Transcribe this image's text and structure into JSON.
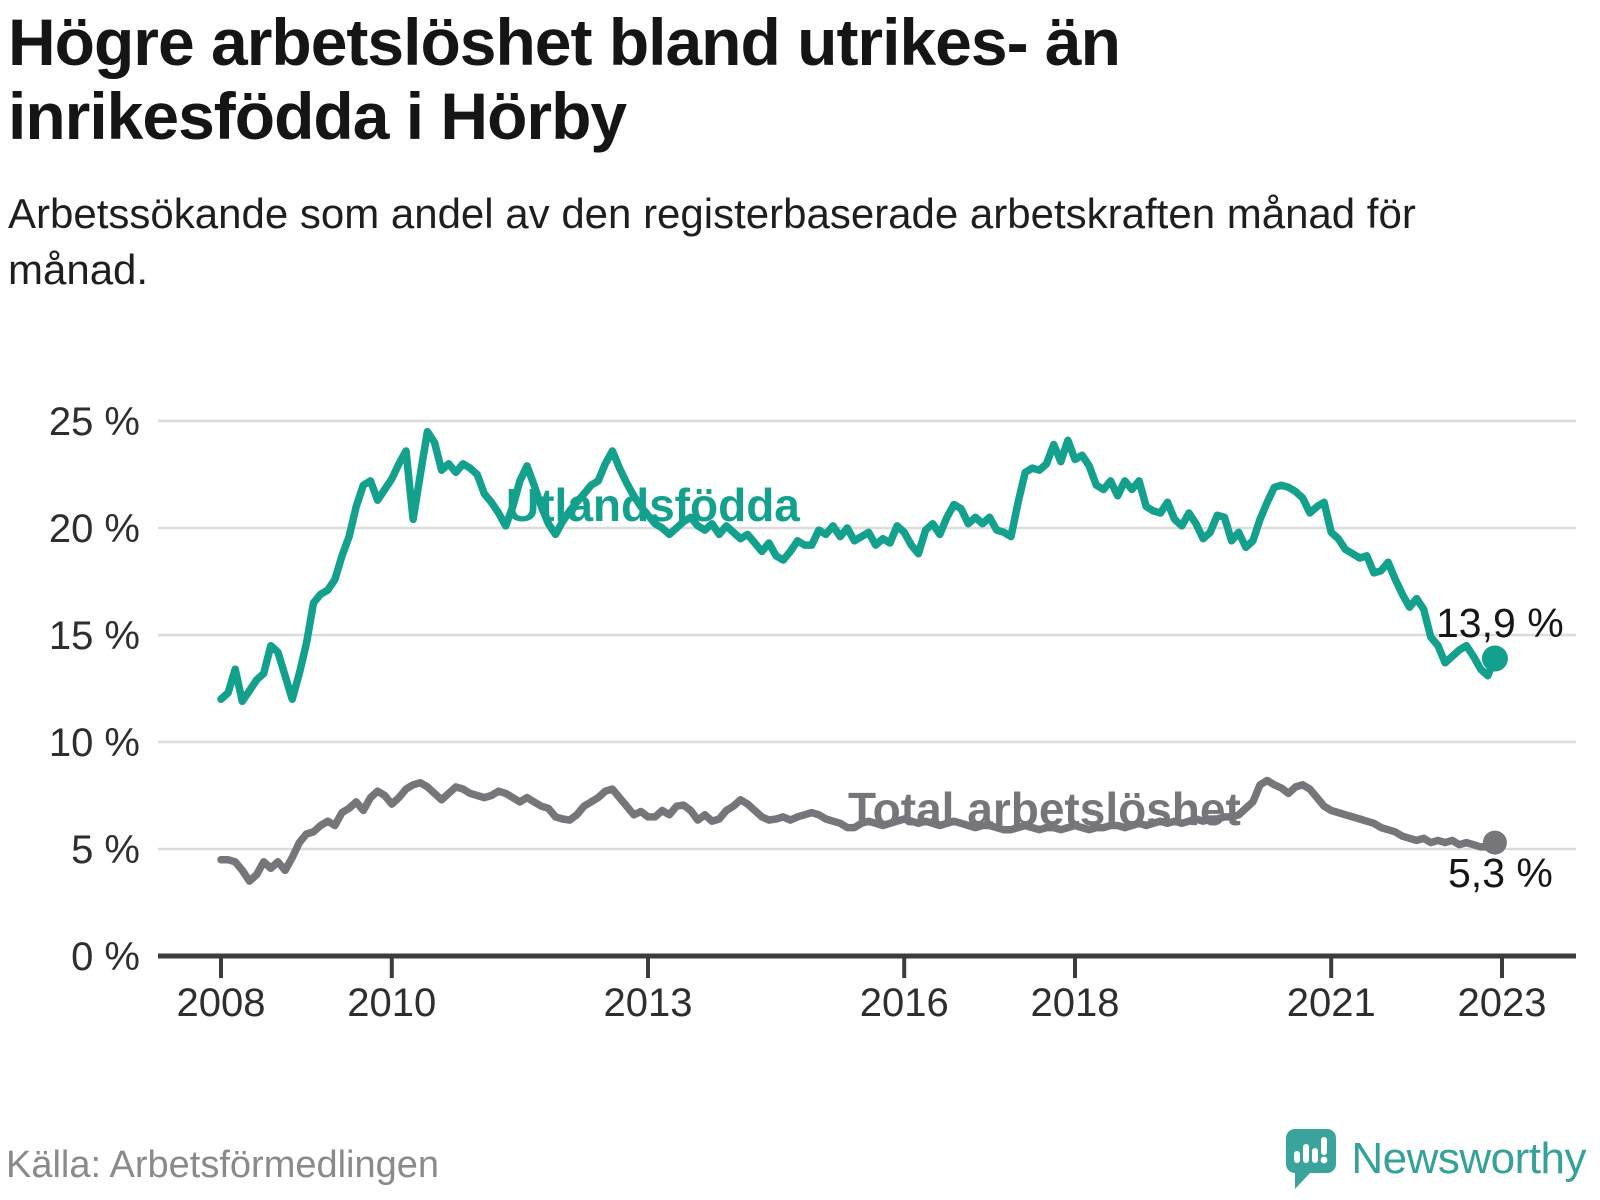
{
  "header": {
    "title": "Högre arbetslöshet bland utrikes- än inrikesfödda i Hörby",
    "subtitle": "Arbetssökande som andel av den registerbaserade arbetskraften månad för månad."
  },
  "footer": {
    "source": "Källa: Arbetsförmedlingen",
    "brand_name": "Newsworthy"
  },
  "colors": {
    "foreign_born_line": "#13a08d",
    "total_line": "#75757a",
    "gridline": "#dcdcdc",
    "axis": "#3c3c3c",
    "tick_text": "#2e2e2e",
    "brand_teal": "#3aa39b"
  },
  "chart_data": {
    "type": "line",
    "x_unit": "month",
    "x_start": "2008-01",
    "x_end": "2022-12",
    "grid": "horizontal-only",
    "ylim": [
      0,
      26
    ],
    "y_ticks": [
      {
        "label": "25 %",
        "value": 25
      },
      {
        "label": "20 %",
        "value": 20
      },
      {
        "label": "15 %",
        "value": 15
      },
      {
        "label": "10 %",
        "value": 10
      },
      {
        "label": "5 %",
        "value": 5
      },
      {
        "label": "0 %",
        "value": 0
      }
    ],
    "x_ticks": [
      {
        "label": "2008",
        "year": 2008
      },
      {
        "label": "2010",
        "year": 2010
      },
      {
        "label": "2013",
        "year": 2013
      },
      {
        "label": "2016",
        "year": 2016
      },
      {
        "label": "2018",
        "year": 2018
      },
      {
        "label": "2021",
        "year": 2021
      },
      {
        "label": "2023",
        "year": 2023
      }
    ],
    "series": [
      {
        "name": "Utlandsfödda",
        "color": "#13a08d",
        "end_label": "13,9 %",
        "end_value": 13.9,
        "values": [
          12.0,
          12.3,
          13.4,
          11.9,
          12.4,
          12.9,
          13.2,
          14.5,
          14.2,
          13.1,
          12.0,
          13.2,
          14.6,
          16.5,
          16.9,
          17.1,
          17.6,
          18.7,
          19.6,
          21.0,
          22.0,
          22.2,
          21.3,
          21.8,
          22.3,
          23.0,
          23.6,
          20.4,
          22.5,
          24.5,
          24.0,
          22.7,
          23.0,
          22.6,
          23.0,
          22.8,
          22.5,
          21.6,
          21.2,
          20.7,
          20.1,
          21.0,
          22.2,
          22.9,
          22.0,
          21.0,
          20.2,
          19.7,
          20.3,
          20.8,
          21.2,
          21.6,
          22.0,
          22.2,
          23.0,
          23.6,
          22.8,
          22.1,
          21.5,
          21.0,
          20.6,
          20.2,
          20.0,
          19.7,
          20.0,
          20.3,
          20.5,
          20.1,
          19.9,
          20.2,
          19.7,
          20.1,
          19.8,
          19.5,
          19.7,
          19.3,
          18.9,
          19.3,
          18.7,
          18.5,
          18.9,
          19.4,
          19.2,
          19.2,
          19.9,
          19.7,
          20.1,
          19.6,
          20.0,
          19.4,
          19.6,
          19.8,
          19.2,
          19.5,
          19.3,
          20.1,
          19.8,
          19.2,
          18.8,
          19.9,
          20.2,
          19.7,
          20.5,
          21.1,
          20.9,
          20.2,
          20.5,
          20.2,
          20.5,
          19.9,
          19.8,
          19.6,
          21.2,
          22.6,
          22.8,
          22.7,
          23.0,
          23.9,
          23.1,
          24.1,
          23.2,
          23.4,
          22.9,
          22.0,
          21.8,
          22.2,
          21.5,
          22.2,
          21.8,
          22.2,
          21.0,
          20.8,
          20.7,
          21.2,
          20.4,
          20.1,
          20.7,
          20.2,
          19.5,
          19.8,
          20.6,
          20.5,
          19.4,
          19.8,
          19.1,
          19.4,
          20.4,
          21.2,
          21.9,
          22.0,
          21.9,
          21.7,
          21.4,
          20.7,
          21.0,
          21.2,
          19.8,
          19.5,
          19.0,
          18.8,
          18.6,
          18.7,
          17.9,
          18.0,
          18.4,
          17.6,
          16.9,
          16.3,
          16.7,
          16.2,
          14.9,
          14.5,
          13.7,
          14.0,
          14.3,
          14.5,
          14.0,
          13.4,
          13.1,
          13.9
        ]
      },
      {
        "name": "Total arbetslöshet",
        "color": "#75757a",
        "end_label": "5,3 %",
        "end_value": 5.3,
        "values": [
          4.5,
          4.5,
          4.4,
          4.0,
          3.5,
          3.8,
          4.4,
          4.1,
          4.4,
          4.0,
          4.6,
          5.3,
          5.7,
          5.8,
          6.1,
          6.3,
          6.1,
          6.7,
          6.9,
          7.2,
          6.8,
          7.4,
          7.7,
          7.5,
          7.1,
          7.4,
          7.8,
          8.0,
          8.1,
          7.9,
          7.6,
          7.3,
          7.6,
          7.9,
          7.8,
          7.6,
          7.5,
          7.4,
          7.5,
          7.7,
          7.6,
          7.4,
          7.2,
          7.4,
          7.2,
          7.0,
          6.9,
          6.5,
          6.4,
          6.35,
          6.6,
          7.0,
          7.2,
          7.4,
          7.7,
          7.8,
          7.4,
          7.0,
          6.6,
          6.75,
          6.5,
          6.5,
          6.8,
          6.6,
          7.0,
          7.05,
          6.8,
          6.35,
          6.6,
          6.3,
          6.4,
          6.8,
          7.0,
          7.3,
          7.1,
          6.8,
          6.5,
          6.35,
          6.4,
          6.5,
          6.35,
          6.5,
          6.6,
          6.7,
          6.6,
          6.4,
          6.3,
          6.2,
          6.0,
          6.0,
          6.2,
          6.3,
          6.2,
          6.1,
          6.2,
          6.3,
          6.4,
          6.3,
          6.2,
          6.3,
          6.2,
          6.1,
          6.2,
          6.3,
          6.2,
          6.1,
          6.0,
          6.1,
          6.1,
          6.0,
          5.9,
          5.9,
          6.0,
          6.1,
          6.0,
          5.9,
          6.0,
          6.0,
          5.9,
          6.0,
          6.1,
          6.0,
          5.9,
          6.0,
          6.0,
          6.1,
          6.1,
          6.0,
          6.1,
          6.2,
          6.1,
          6.2,
          6.3,
          6.2,
          6.3,
          6.2,
          6.3,
          6.4,
          6.3,
          6.4,
          6.4,
          6.5,
          6.5,
          6.6,
          6.9,
          7.2,
          8.0,
          8.2,
          8.0,
          7.85,
          7.6,
          7.9,
          8.0,
          7.8,
          7.4,
          7.0,
          6.8,
          6.7,
          6.6,
          6.5,
          6.4,
          6.3,
          6.2,
          6.0,
          5.9,
          5.8,
          5.6,
          5.5,
          5.4,
          5.5,
          5.3,
          5.4,
          5.3,
          5.4,
          5.2,
          5.3,
          5.2,
          5.1,
          5.1,
          5.3
        ]
      }
    ]
  }
}
